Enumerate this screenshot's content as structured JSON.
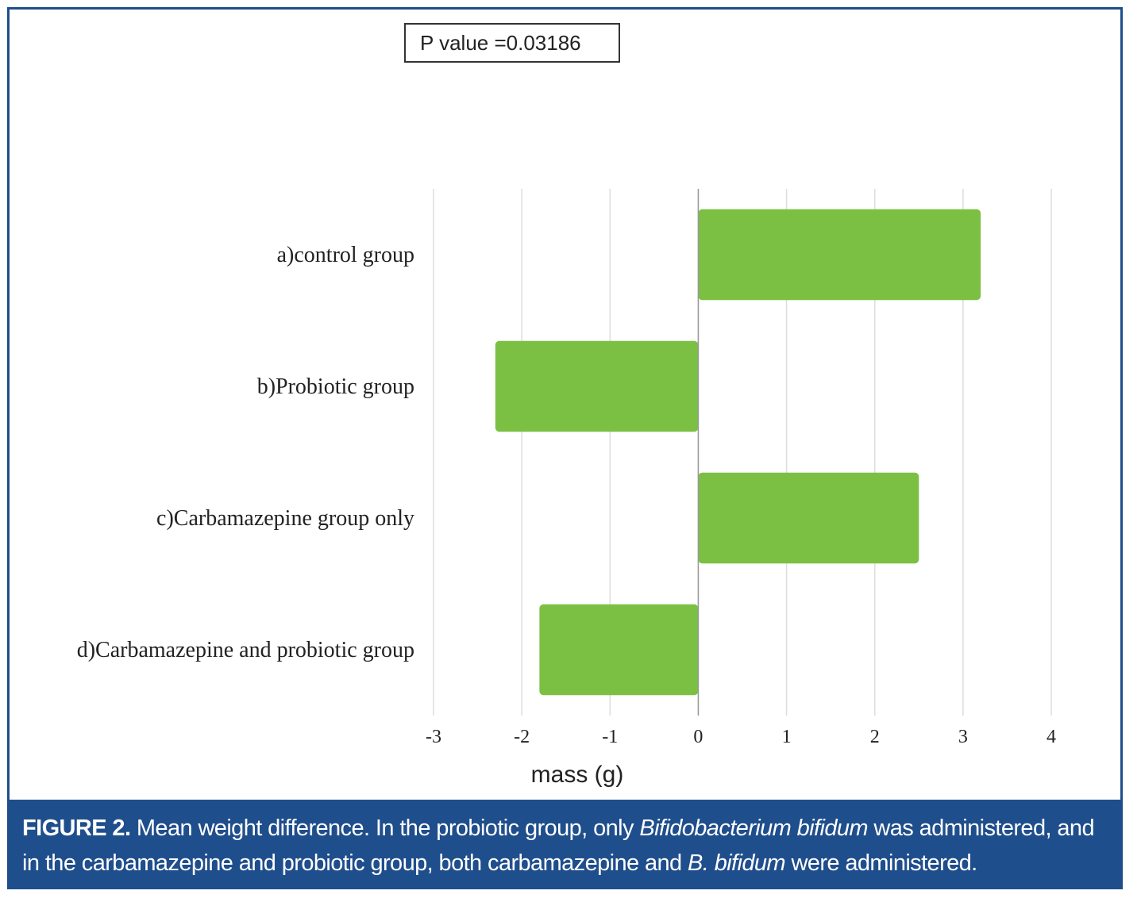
{
  "annotation": {
    "p_value": "P value =0.03186"
  },
  "caption": {
    "label": "FIGURE 2.",
    "t1": " Mean weight difference. In the probiotic group, only ",
    "i1": "Bifidobacterium bifidum",
    "t2": " was administered, and in the carbamazepine and probiotic group, both carbamazepine and ",
    "i2": "B. bifidum",
    "t3": " were administered."
  },
  "colors": {
    "bar": "#7bc043",
    "grid": "#dddddd",
    "frame": "#1f4e8c"
  },
  "chart_data": {
    "type": "bar",
    "orientation": "horizontal",
    "categories": [
      "a)control group",
      "b)Probiotic group",
      "c)Carbamazepine group only",
      "d)Carbamazepine and probiotic group"
    ],
    "values": [
      3.2,
      -2.3,
      2.5,
      -1.8
    ],
    "xlabel": "mass (g)",
    "ylabel": "",
    "xlim": [
      -3,
      4
    ],
    "xticks": [
      -3,
      -2,
      -1,
      0,
      1,
      2,
      3,
      4
    ],
    "grid": true
  }
}
